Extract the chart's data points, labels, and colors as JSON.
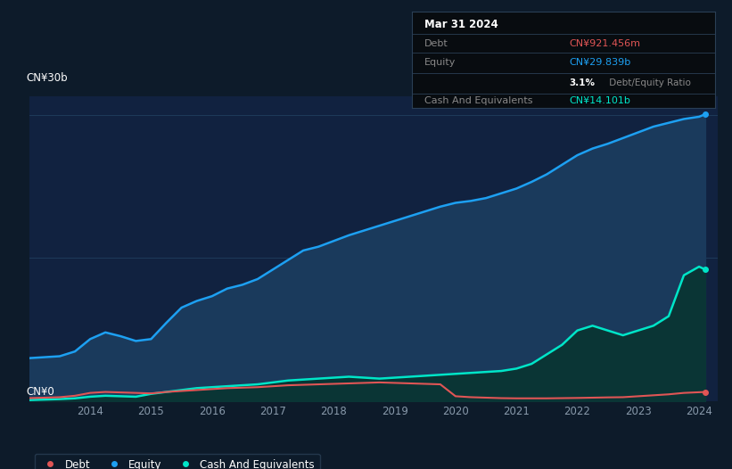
{
  "background_color": "#0d1b2a",
  "plot_bg_color": "#112240",
  "equity_color": "#1da0f2",
  "equity_fill": "#1a3a5c",
  "debt_color": "#e05555",
  "cash_color": "#00e5c8",
  "cash_fill": "#0a3535",
  "grid_color": "#1e3a5a",
  "tooltip_bg": "#080c10",
  "tooltip_border": "#2a3f55",
  "tooltip_text": "#888888",
  "tooltip_debt_color": "#e05555",
  "tooltip_equity_color": "#1da0f2",
  "tooltip_cash_color": "#00e5c8",
  "years": [
    2013.0,
    2013.25,
    2013.5,
    2013.75,
    2014.0,
    2014.25,
    2014.5,
    2014.75,
    2015.0,
    2015.25,
    2015.5,
    2015.75,
    2016.0,
    2016.25,
    2016.5,
    2016.75,
    2017.0,
    2017.25,
    2017.5,
    2017.75,
    2018.0,
    2018.25,
    2018.5,
    2018.75,
    2019.0,
    2019.25,
    2019.5,
    2019.75,
    2020.0,
    2020.25,
    2020.5,
    2020.75,
    2021.0,
    2021.25,
    2021.5,
    2021.75,
    2022.0,
    2022.25,
    2022.5,
    2022.75,
    2023.0,
    2023.25,
    2023.5,
    2023.75,
    2024.0,
    2024.1
  ],
  "equity": [
    4.5,
    4.6,
    4.7,
    5.2,
    6.5,
    7.2,
    6.8,
    6.3,
    6.5,
    8.2,
    9.8,
    10.5,
    11.0,
    11.8,
    12.2,
    12.8,
    13.8,
    14.8,
    15.8,
    16.2,
    16.8,
    17.4,
    17.9,
    18.4,
    18.9,
    19.4,
    19.9,
    20.4,
    20.8,
    21.0,
    21.3,
    21.8,
    22.3,
    23.0,
    23.8,
    24.8,
    25.8,
    26.5,
    27.0,
    27.6,
    28.2,
    28.8,
    29.2,
    29.6,
    29.839,
    30.1
  ],
  "debt": [
    0.3,
    0.35,
    0.4,
    0.55,
    0.85,
    0.95,
    0.9,
    0.85,
    0.8,
    0.95,
    1.05,
    1.15,
    1.25,
    1.35,
    1.4,
    1.45,
    1.55,
    1.65,
    1.7,
    1.75,
    1.8,
    1.85,
    1.9,
    1.95,
    1.9,
    1.85,
    1.8,
    1.75,
    0.5,
    0.4,
    0.35,
    0.3,
    0.28,
    0.28,
    0.28,
    0.3,
    0.32,
    0.35,
    0.38,
    0.4,
    0.5,
    0.6,
    0.7,
    0.85,
    0.921,
    0.95
  ],
  "cash": [
    0.1,
    0.15,
    0.2,
    0.28,
    0.45,
    0.55,
    0.5,
    0.45,
    0.75,
    0.95,
    1.15,
    1.35,
    1.45,
    1.55,
    1.65,
    1.75,
    1.95,
    2.15,
    2.25,
    2.35,
    2.45,
    2.55,
    2.45,
    2.35,
    2.45,
    2.55,
    2.65,
    2.75,
    2.85,
    2.95,
    3.05,
    3.15,
    3.4,
    3.9,
    4.9,
    5.9,
    7.4,
    7.9,
    7.4,
    6.9,
    7.4,
    7.9,
    8.9,
    13.2,
    14.101,
    13.8
  ],
  "ylim": [
    0,
    32
  ],
  "xlim": [
    2013.0,
    2024.3
  ],
  "x_tick_years": [
    2014,
    2015,
    2016,
    2017,
    2018,
    2019,
    2020,
    2021,
    2022,
    2023,
    2024
  ],
  "x_labels": [
    "2014",
    "2015",
    "2016",
    "2017",
    "2018",
    "2019",
    "2020",
    "2021",
    "2022",
    "2023",
    "2024"
  ]
}
